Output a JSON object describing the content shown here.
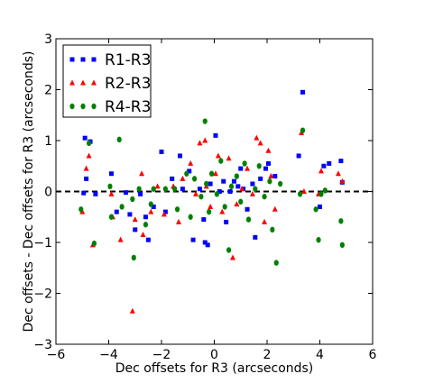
{
  "chart_data": {
    "type": "scatter",
    "xlabel": "Dec offsets for R3 (arcseconds)",
    "ylabel": "Dec offsets - Dec offsets for R3 (arcseconds)",
    "xlim": [
      -6,
      6
    ],
    "ylim": [
      -3,
      3
    ],
    "x_ticks": [
      "−6",
      "−4",
      "−2",
      "0",
      "2",
      "4",
      "6"
    ],
    "y_ticks": [
      "−3",
      "−2",
      "−1",
      "0",
      "1",
      "2",
      "3"
    ],
    "grid": false,
    "reference_line": {
      "y": 0,
      "style": "dashed",
      "color": "#000000"
    },
    "legend": {
      "placement": "upper-left"
    },
    "series": [
      {
        "name": "R1-R3",
        "marker": "square",
        "color": "#0000ff",
        "points": [
          [
            -4.9,
            1.05
          ],
          [
            -4.7,
            0.98
          ],
          [
            -4.85,
            0.25
          ],
          [
            -4.95,
            -0.03
          ],
          [
            -4.5,
            -0.05
          ],
          [
            -3.9,
            0.35
          ],
          [
            -3.7,
            -0.4
          ],
          [
            -3.35,
            -0.02
          ],
          [
            -3.2,
            -0.45
          ],
          [
            -3.0,
            -0.75
          ],
          [
            -2.8,
            -0.05
          ],
          [
            -2.6,
            -0.5
          ],
          [
            -2.5,
            -0.95
          ],
          [
            -2.3,
            -0.3
          ],
          [
            -2.0,
            0.78
          ],
          [
            -1.85,
            -0.4
          ],
          [
            -1.6,
            0.25
          ],
          [
            -1.3,
            0.7
          ],
          [
            -1.2,
            0.05
          ],
          [
            -0.95,
            0.4
          ],
          [
            -0.8,
            -0.95
          ],
          [
            -0.55,
            0.05
          ],
          [
            -0.4,
            -0.55
          ],
          [
            -0.35,
            -1.0
          ],
          [
            -0.25,
            -1.05
          ],
          [
            -0.15,
            0.15
          ],
          [
            0.05,
            1.1
          ],
          [
            0.2,
            0.0
          ],
          [
            0.35,
            0.2
          ],
          [
            0.45,
            -0.6
          ],
          [
            0.6,
            0.0
          ],
          [
            0.75,
            0.2
          ],
          [
            0.9,
            0.1
          ],
          [
            1.0,
            0.45
          ],
          [
            1.1,
            0.05
          ],
          [
            1.25,
            -0.35
          ],
          [
            1.45,
            0.15
          ],
          [
            1.55,
            -0.9
          ],
          [
            1.75,
            0.25
          ],
          [
            1.95,
            0.45
          ],
          [
            2.05,
            0.55
          ],
          [
            2.3,
            0.3
          ],
          [
            3.2,
            0.7
          ],
          [
            3.35,
            1.95
          ],
          [
            4.0,
            -0.3
          ],
          [
            4.15,
            0.5
          ],
          [
            4.35,
            0.55
          ],
          [
            4.8,
            0.6
          ],
          [
            4.85,
            0.18
          ]
        ]
      },
      {
        "name": "R2-R3",
        "marker": "triangle",
        "color": "#ff0000",
        "points": [
          [
            -5.0,
            -0.4
          ],
          [
            -4.85,
            0.45
          ],
          [
            -4.75,
            0.7
          ],
          [
            -4.6,
            -1.05
          ],
          [
            -3.9,
            -0.05
          ],
          [
            -3.85,
            -0.5
          ],
          [
            -3.55,
            -0.95
          ],
          [
            -3.1,
            -2.35
          ],
          [
            -3.0,
            -0.55
          ],
          [
            -2.75,
            0.35
          ],
          [
            -2.7,
            -0.85
          ],
          [
            -2.4,
            -0.4
          ],
          [
            -2.15,
            0.1
          ],
          [
            -1.9,
            -0.45
          ],
          [
            -1.55,
            0.1
          ],
          [
            -1.35,
            -0.6
          ],
          [
            -1.2,
            0.25
          ],
          [
            -0.9,
            0.55
          ],
          [
            -0.7,
            -0.05
          ],
          [
            -0.55,
            0.95
          ],
          [
            -0.35,
            1.0
          ],
          [
            -0.3,
            0.1
          ],
          [
            -0.15,
            -0.3
          ],
          [
            0.05,
            0.35
          ],
          [
            0.15,
            0.7
          ],
          [
            0.3,
            -0.4
          ],
          [
            0.55,
            0.65
          ],
          [
            0.7,
            -1.3
          ],
          [
            0.85,
            -0.25
          ],
          [
            1.05,
            0.05
          ],
          [
            1.25,
            0.45
          ],
          [
            1.45,
            -0.05
          ],
          [
            1.6,
            1.05
          ],
          [
            1.75,
            0.95
          ],
          [
            1.9,
            -0.6
          ],
          [
            2.05,
            0.8
          ],
          [
            2.15,
            0.3
          ],
          [
            2.3,
            -0.35
          ],
          [
            3.3,
            1.15
          ],
          [
            3.4,
            0.0
          ],
          [
            3.95,
            -0.05
          ],
          [
            4.05,
            0.4
          ],
          [
            4.7,
            0.35
          ],
          [
            4.85,
            0.2
          ]
        ]
      },
      {
        "name": "R4-R3",
        "marker": "circle",
        "color": "#008000",
        "points": [
          [
            -5.05,
            -0.35
          ],
          [
            -4.75,
            0.95
          ],
          [
            -4.55,
            -1.02
          ],
          [
            -3.95,
            0.1
          ],
          [
            -3.9,
            -0.5
          ],
          [
            -3.6,
            1.02
          ],
          [
            -3.5,
            -0.3
          ],
          [
            -3.1,
            -0.15
          ],
          [
            -3.05,
            -1.3
          ],
          [
            -2.85,
            0.05
          ],
          [
            -2.6,
            -0.65
          ],
          [
            -2.4,
            -0.25
          ],
          [
            -2.3,
            0.05
          ],
          [
            -1.85,
            0.05
          ],
          [
            -1.5,
            0.05
          ],
          [
            -1.4,
            -0.35
          ],
          [
            -1.05,
            0.35
          ],
          [
            -0.9,
            -0.5
          ],
          [
            -0.75,
            0.25
          ],
          [
            -0.5,
            -0.1
          ],
          [
            -0.35,
            1.38
          ],
          [
            -0.3,
            0.15
          ],
          [
            -0.2,
            -0.4
          ],
          [
            -0.1,
            0.35
          ],
          [
            0.1,
            -0.05
          ],
          [
            0.25,
            0.6
          ],
          [
            0.4,
            -0.3
          ],
          [
            0.55,
            -1.15
          ],
          [
            0.65,
            0.1
          ],
          [
            0.85,
            0.3
          ],
          [
            1.0,
            -0.2
          ],
          [
            1.15,
            0.55
          ],
          [
            1.3,
            -0.55
          ],
          [
            1.55,
            0.05
          ],
          [
            1.7,
            0.5
          ],
          [
            1.9,
            -0.1
          ],
          [
            2.1,
            0.2
          ],
          [
            2.2,
            -0.75
          ],
          [
            2.35,
            -1.4
          ],
          [
            2.5,
            0.15
          ],
          [
            3.25,
            -0.05
          ],
          [
            3.35,
            1.2
          ],
          [
            3.85,
            -0.35
          ],
          [
            3.95,
            -0.95
          ],
          [
            4.05,
            -0.05
          ],
          [
            4.2,
            0.02
          ],
          [
            4.8,
            -0.58
          ],
          [
            4.85,
            -1.05
          ]
        ]
      }
    ]
  }
}
